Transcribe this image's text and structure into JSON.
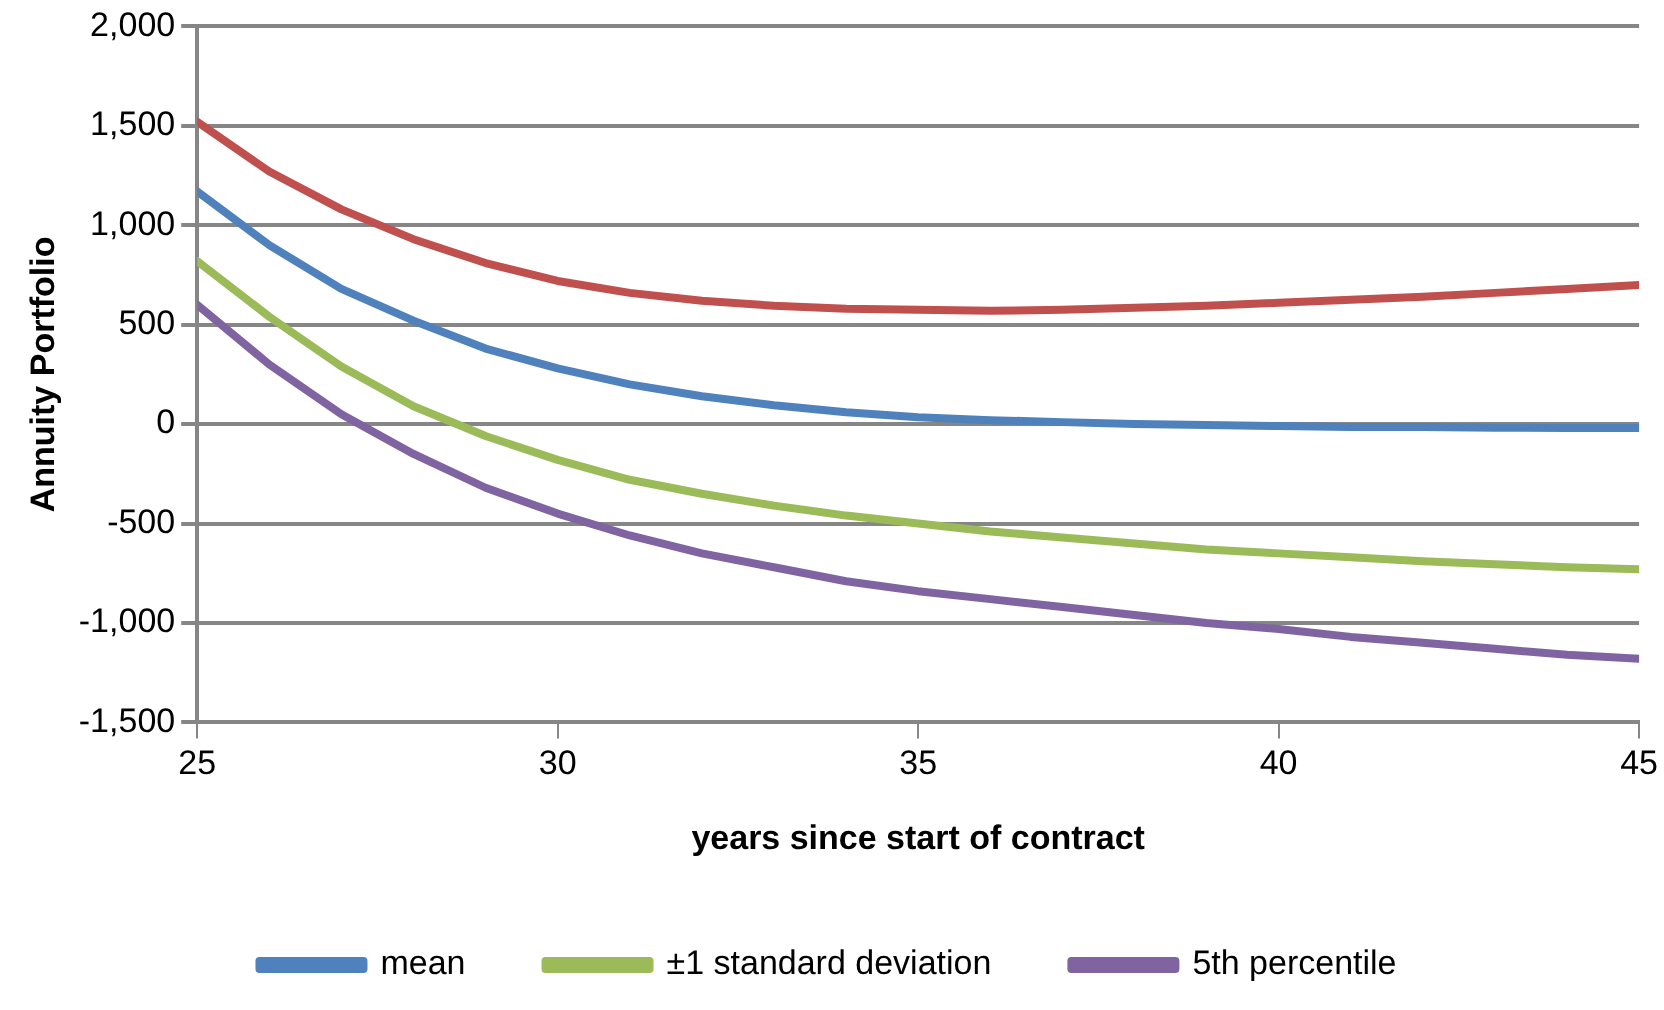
{
  "chart_data": {
    "type": "line",
    "xlabel": "years since start of contract",
    "ylabel": "Annuity Portfolio",
    "x": [
      25,
      26,
      27,
      28,
      29,
      30,
      31,
      32,
      33,
      34,
      35,
      36,
      37,
      38,
      39,
      40,
      41,
      42,
      43,
      44,
      45
    ],
    "series": [
      {
        "color": "#c0504d",
        "values": [
          1520,
          1270,
          1080,
          930,
          810,
          720,
          660,
          620,
          595,
          580,
          575,
          570,
          575,
          585,
          595,
          610,
          625,
          640,
          660,
          680,
          700
        ]
      },
      {
        "name": "mean",
        "color": "#4f81bd",
        "values": [
          1170,
          900,
          680,
          520,
          380,
          280,
          200,
          140,
          95,
          60,
          35,
          20,
          10,
          0,
          -5,
          -10,
          -15,
          -15,
          -18,
          -20,
          -20
        ]
      },
      {
        "name": "±1 standard deviation",
        "color": "#9bbb59",
        "values": [
          820,
          540,
          290,
          90,
          -60,
          -180,
          -280,
          -350,
          -410,
          -460,
          -500,
          -540,
          -570,
          -600,
          -630,
          -650,
          -670,
          -690,
          -705,
          -720,
          -730
        ]
      },
      {
        "name": "5th percentile",
        "color": "#8064a2",
        "values": [
          600,
          300,
          50,
          -150,
          -320,
          -450,
          -560,
          -650,
          -720,
          -790,
          -840,
          -880,
          -920,
          -960,
          -1000,
          -1030,
          -1070,
          -1100,
          -1130,
          -1160,
          -1180
        ]
      }
    ],
    "xlim": [
      25,
      45
    ],
    "xticks": [
      25,
      30,
      35,
      40,
      45
    ],
    "ylim": [
      -1500,
      2000
    ],
    "yticks": [
      {
        "value": -1500,
        "label": "-1,500"
      },
      {
        "value": -1000,
        "label": "-1,000"
      },
      {
        "value": -500,
        "label": "-500"
      },
      0,
      500,
      {
        "value": 1000,
        "label": "1,000"
      },
      {
        "value": 1500,
        "label": "1,500"
      },
      {
        "value": 2000,
        "label": "2,000"
      }
    ],
    "grid": "y",
    "legend": "bottom",
    "marker": "none",
    "line_style": "solid"
  }
}
